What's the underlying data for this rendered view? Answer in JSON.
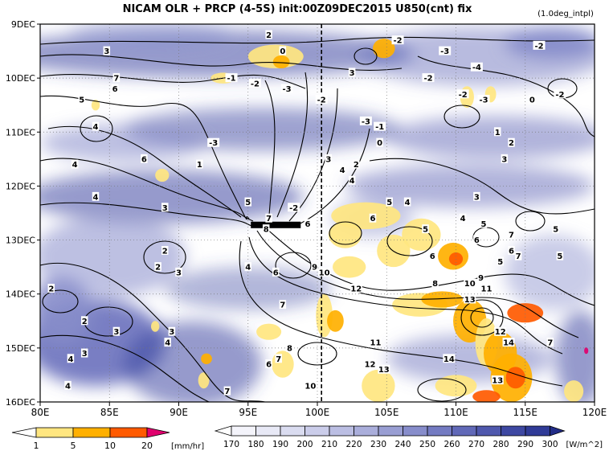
{
  "header": {
    "title": "NICAM  OLR + PRCP (4-5S) init:00Z09DEC2015 U850(cnt) fix",
    "note": "(1.0deg_intpl)"
  },
  "chart_data": {
    "type": "heatmap",
    "x_axis": {
      "range": [
        80,
        120
      ],
      "ticks": [
        80,
        85,
        90,
        95,
        100,
        105,
        110,
        115,
        120
      ],
      "tick_labels": [
        "80E",
        "85E",
        "90E",
        "95E",
        "100E",
        "105E",
        "110E",
        "115E",
        "120E"
      ]
    },
    "y_axis": {
      "range_days": [
        9,
        16
      ],
      "direction": "time increasing downward",
      "ticks": [
        9,
        10,
        11,
        12,
        13,
        14,
        15,
        16
      ],
      "tick_labels": [
        "9DEC",
        "10DEC",
        "11DEC",
        "12DEC",
        "13DEC",
        "14DEC",
        "15DEC",
        "16DEC"
      ]
    },
    "grid": "dotted",
    "reference_line": {
      "x": 100.3,
      "style": "dashed vertical"
    },
    "contours_u850": [
      {
        "x": 85.5,
        "y": 10.0,
        "value": "7"
      },
      {
        "x": 85.4,
        "y": 10.2,
        "value": "6"
      },
      {
        "x": 84.8,
        "y": 9.5,
        "value": "3"
      },
      {
        "x": 83.0,
        "y": 10.4,
        "value": "5"
      },
      {
        "x": 84.0,
        "y": 10.9,
        "value": "4"
      },
      {
        "x": 82.5,
        "y": 11.6,
        "value": "4"
      },
      {
        "x": 87.5,
        "y": 11.5,
        "value": "6"
      },
      {
        "x": 84.0,
        "y": 12.2,
        "value": "4"
      },
      {
        "x": 89.0,
        "y": 12.4,
        "value": "3"
      },
      {
        "x": 91.5,
        "y": 11.6,
        "value": "1"
      },
      {
        "x": 92.5,
        "y": 11.2,
        "value": "-3"
      },
      {
        "x": 93.8,
        "y": 10.0,
        "value": "-1"
      },
      {
        "x": 96.5,
        "y": 9.2,
        "value": "2"
      },
      {
        "x": 97.5,
        "y": 9.5,
        "value": "0"
      },
      {
        "x": 95.5,
        "y": 10.1,
        "value": "-2"
      },
      {
        "x": 97.8,
        "y": 10.2,
        "value": "-3"
      },
      {
        "x": 100.3,
        "y": 10.4,
        "value": "-2"
      },
      {
        "x": 102.5,
        "y": 9.9,
        "value": "3"
      },
      {
        "x": 105.8,
        "y": 9.3,
        "value": "-2"
      },
      {
        "x": 109.2,
        "y": 9.5,
        "value": "-3"
      },
      {
        "x": 111.5,
        "y": 9.8,
        "value": "-4"
      },
      {
        "x": 116.0,
        "y": 9.4,
        "value": "-2"
      },
      {
        "x": 108.0,
        "y": 10.0,
        "value": "-2"
      },
      {
        "x": 110.5,
        "y": 10.3,
        "value": "-2"
      },
      {
        "x": 112.0,
        "y": 10.4,
        "value": "-3"
      },
      {
        "x": 115.5,
        "y": 10.4,
        "value": "0"
      },
      {
        "x": 117.5,
        "y": 10.3,
        "value": "-2"
      },
      {
        "x": 103.5,
        "y": 10.8,
        "value": "-3"
      },
      {
        "x": 104.5,
        "y": 10.9,
        "value": "-1"
      },
      {
        "x": 104.5,
        "y": 11.2,
        "value": "0"
      },
      {
        "x": 100.8,
        "y": 11.5,
        "value": "3"
      },
      {
        "x": 102.8,
        "y": 11.6,
        "value": "2"
      },
      {
        "x": 101.8,
        "y": 11.7,
        "value": "4"
      },
      {
        "x": 113.0,
        "y": 11.0,
        "value": "1"
      },
      {
        "x": 114.0,
        "y": 11.2,
        "value": "2"
      },
      {
        "x": 113.5,
        "y": 11.5,
        "value": "3"
      },
      {
        "x": 102.5,
        "y": 11.9,
        "value": "4"
      },
      {
        "x": 95.0,
        "y": 12.3,
        "value": "5"
      },
      {
        "x": 98.3,
        "y": 12.4,
        "value": "-2"
      },
      {
        "x": 96.5,
        "y": 12.6,
        "value": "7"
      },
      {
        "x": 96.3,
        "y": 12.8,
        "value": "8"
      },
      {
        "x": 99.3,
        "y": 12.7,
        "value": "6"
      },
      {
        "x": 105.2,
        "y": 12.3,
        "value": "5"
      },
      {
        "x": 106.5,
        "y": 12.3,
        "value": "4"
      },
      {
        "x": 104.0,
        "y": 12.6,
        "value": "6"
      },
      {
        "x": 107.8,
        "y": 12.8,
        "value": "5"
      },
      {
        "x": 110.5,
        "y": 12.6,
        "value": "4"
      },
      {
        "x": 111.5,
        "y": 12.2,
        "value": "3"
      },
      {
        "x": 112.0,
        "y": 12.7,
        "value": "5"
      },
      {
        "x": 111.5,
        "y": 13.0,
        "value": "6"
      },
      {
        "x": 114.0,
        "y": 12.9,
        "value": "7"
      },
      {
        "x": 117.2,
        "y": 12.8,
        "value": "5"
      },
      {
        "x": 114.0,
        "y": 13.2,
        "value": "6"
      },
      {
        "x": 113.2,
        "y": 13.4,
        "value": "5"
      },
      {
        "x": 114.5,
        "y": 13.3,
        "value": "7"
      },
      {
        "x": 117.5,
        "y": 13.3,
        "value": "5"
      },
      {
        "x": 89.0,
        "y": 13.2,
        "value": "2"
      },
      {
        "x": 88.5,
        "y": 13.5,
        "value": "2"
      },
      {
        "x": 90.0,
        "y": 13.6,
        "value": "3"
      },
      {
        "x": 95.0,
        "y": 13.5,
        "value": "4"
      },
      {
        "x": 97.0,
        "y": 13.6,
        "value": "6"
      },
      {
        "x": 99.8,
        "y": 13.5,
        "value": "9"
      },
      {
        "x": 100.5,
        "y": 13.6,
        "value": "10"
      },
      {
        "x": 108.3,
        "y": 13.3,
        "value": "6"
      },
      {
        "x": 111.8,
        "y": 13.7,
        "value": "9"
      },
      {
        "x": 111.0,
        "y": 13.8,
        "value": "10"
      },
      {
        "x": 108.5,
        "y": 13.8,
        "value": "8"
      },
      {
        "x": 102.8,
        "y": 13.9,
        "value": "12"
      },
      {
        "x": 112.2,
        "y": 13.9,
        "value": "11"
      },
      {
        "x": 111.0,
        "y": 14.1,
        "value": "13"
      },
      {
        "x": 80.8,
        "y": 13.9,
        "value": "2"
      },
      {
        "x": 97.5,
        "y": 14.2,
        "value": "7"
      },
      {
        "x": 83.2,
        "y": 14.5,
        "value": "2"
      },
      {
        "x": 85.5,
        "y": 14.7,
        "value": "3"
      },
      {
        "x": 89.5,
        "y": 14.7,
        "value": "3"
      },
      {
        "x": 89.2,
        "y": 14.9,
        "value": "4"
      },
      {
        "x": 113.2,
        "y": 14.7,
        "value": "12"
      },
      {
        "x": 113.8,
        "y": 14.9,
        "value": "14"
      },
      {
        "x": 116.8,
        "y": 14.9,
        "value": "7"
      },
      {
        "x": 83.2,
        "y": 15.1,
        "value": "3"
      },
      {
        "x": 82.2,
        "y": 15.2,
        "value": "4"
      },
      {
        "x": 98.0,
        "y": 15.0,
        "value": "8"
      },
      {
        "x": 104.2,
        "y": 14.9,
        "value": "11"
      },
      {
        "x": 96.5,
        "y": 15.3,
        "value": "6"
      },
      {
        "x": 97.2,
        "y": 15.2,
        "value": "7"
      },
      {
        "x": 103.8,
        "y": 15.3,
        "value": "12"
      },
      {
        "x": 104.8,
        "y": 15.4,
        "value": "13"
      },
      {
        "x": 109.5,
        "y": 15.2,
        "value": "14"
      },
      {
        "x": 82.0,
        "y": 15.7,
        "value": "4"
      },
      {
        "x": 93.5,
        "y": 15.8,
        "value": "7"
      },
      {
        "x": 99.5,
        "y": 15.7,
        "value": "10"
      },
      {
        "x": 113.0,
        "y": 15.6,
        "value": "13"
      }
    ],
    "precipitation_legend": {
      "unit": "[mm/hr]",
      "levels": [
        1,
        5,
        10,
        20
      ],
      "colors": [
        "#ffffff",
        "#ffe680",
        "#ffb000",
        "#ff5a00",
        "#e0006e"
      ]
    },
    "olr_legend": {
      "unit": "[W/m^2]",
      "levels": [
        170,
        180,
        190,
        200,
        210,
        220,
        230,
        240,
        250,
        260,
        270,
        280,
        290,
        300
      ],
      "colors": [
        "#ffffff",
        "#f4f4fb",
        "#e8e9f6",
        "#dadcf0",
        "#cbcdea",
        "#bbbee3",
        "#aaaedb",
        "#999ed3",
        "#878dcb",
        "#747bc2",
        "#6169b8",
        "#4f58ad",
        "#3e48a2",
        "#303b97",
        "#222c88"
      ]
    },
    "colors": {
      "olr_low": "#ffffff",
      "olr_high": "#1e2a8a",
      "precip_light": "#ffe680",
      "precip_moderate": "#ffb000",
      "precip_heavy": "#ff5a00",
      "precip_extreme": "#e0006e",
      "contour": "#000000"
    }
  }
}
